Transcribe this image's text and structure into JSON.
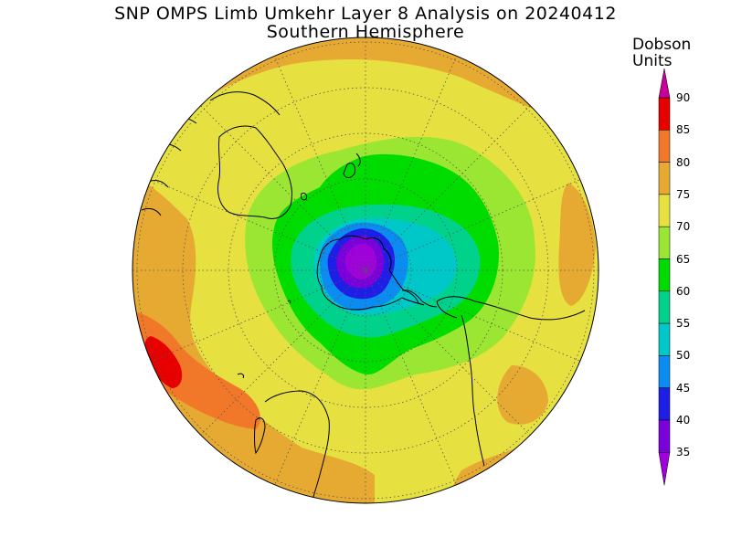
{
  "title": {
    "line1": "SNP OMPS Limb Umkehr Layer 8 Analysis on 20240412",
    "line2": "Southern Hemisphere"
  },
  "legend": {
    "unit_line1": "Dobson",
    "unit_line2": "Units",
    "levels": [
      {
        "value": 35,
        "label": "35",
        "color": "#7a00dc"
      },
      {
        "value": 40,
        "label": "40",
        "color": "#1e1ee6"
      },
      {
        "value": 45,
        "label": "45",
        "color": "#0a8cf0"
      },
      {
        "value": 50,
        "label": "50",
        "color": "#00c8c8"
      },
      {
        "value": 55,
        "label": "55",
        "color": "#00d28c"
      },
      {
        "value": 60,
        "label": "60",
        "color": "#00dc00"
      },
      {
        "value": 65,
        "label": "65",
        "color": "#9be632"
      },
      {
        "value": 70,
        "label": "70",
        "color": "#e6e141"
      },
      {
        "value": 75,
        "label": "75",
        "color": "#e6aa32"
      },
      {
        "value": 80,
        "label": "80",
        "color": "#f07828"
      },
      {
        "value": 85,
        "label": "85",
        "color": "#e60000"
      },
      {
        "value": 90,
        "label": "90",
        "color": "#c8009b"
      }
    ],
    "low_arrow_color": "#a000dc",
    "high_arrow_color": "#c8009b"
  },
  "map": {
    "projection": "south-polar-stereographic",
    "field_colors": {
      "purple": "#a000dc",
      "violet": "#7a00dc",
      "blue": "#1e1ee6",
      "sky": "#0a8cf0",
      "cyan": "#00c8c8",
      "teal": "#00d28c",
      "green": "#00dc00",
      "lime": "#9be632",
      "yellow": "#e6e141",
      "orange": "#e6aa32",
      "dark_orange": "#f07828",
      "red": "#e60000"
    },
    "grid": "dotted lat/lon circles"
  }
}
